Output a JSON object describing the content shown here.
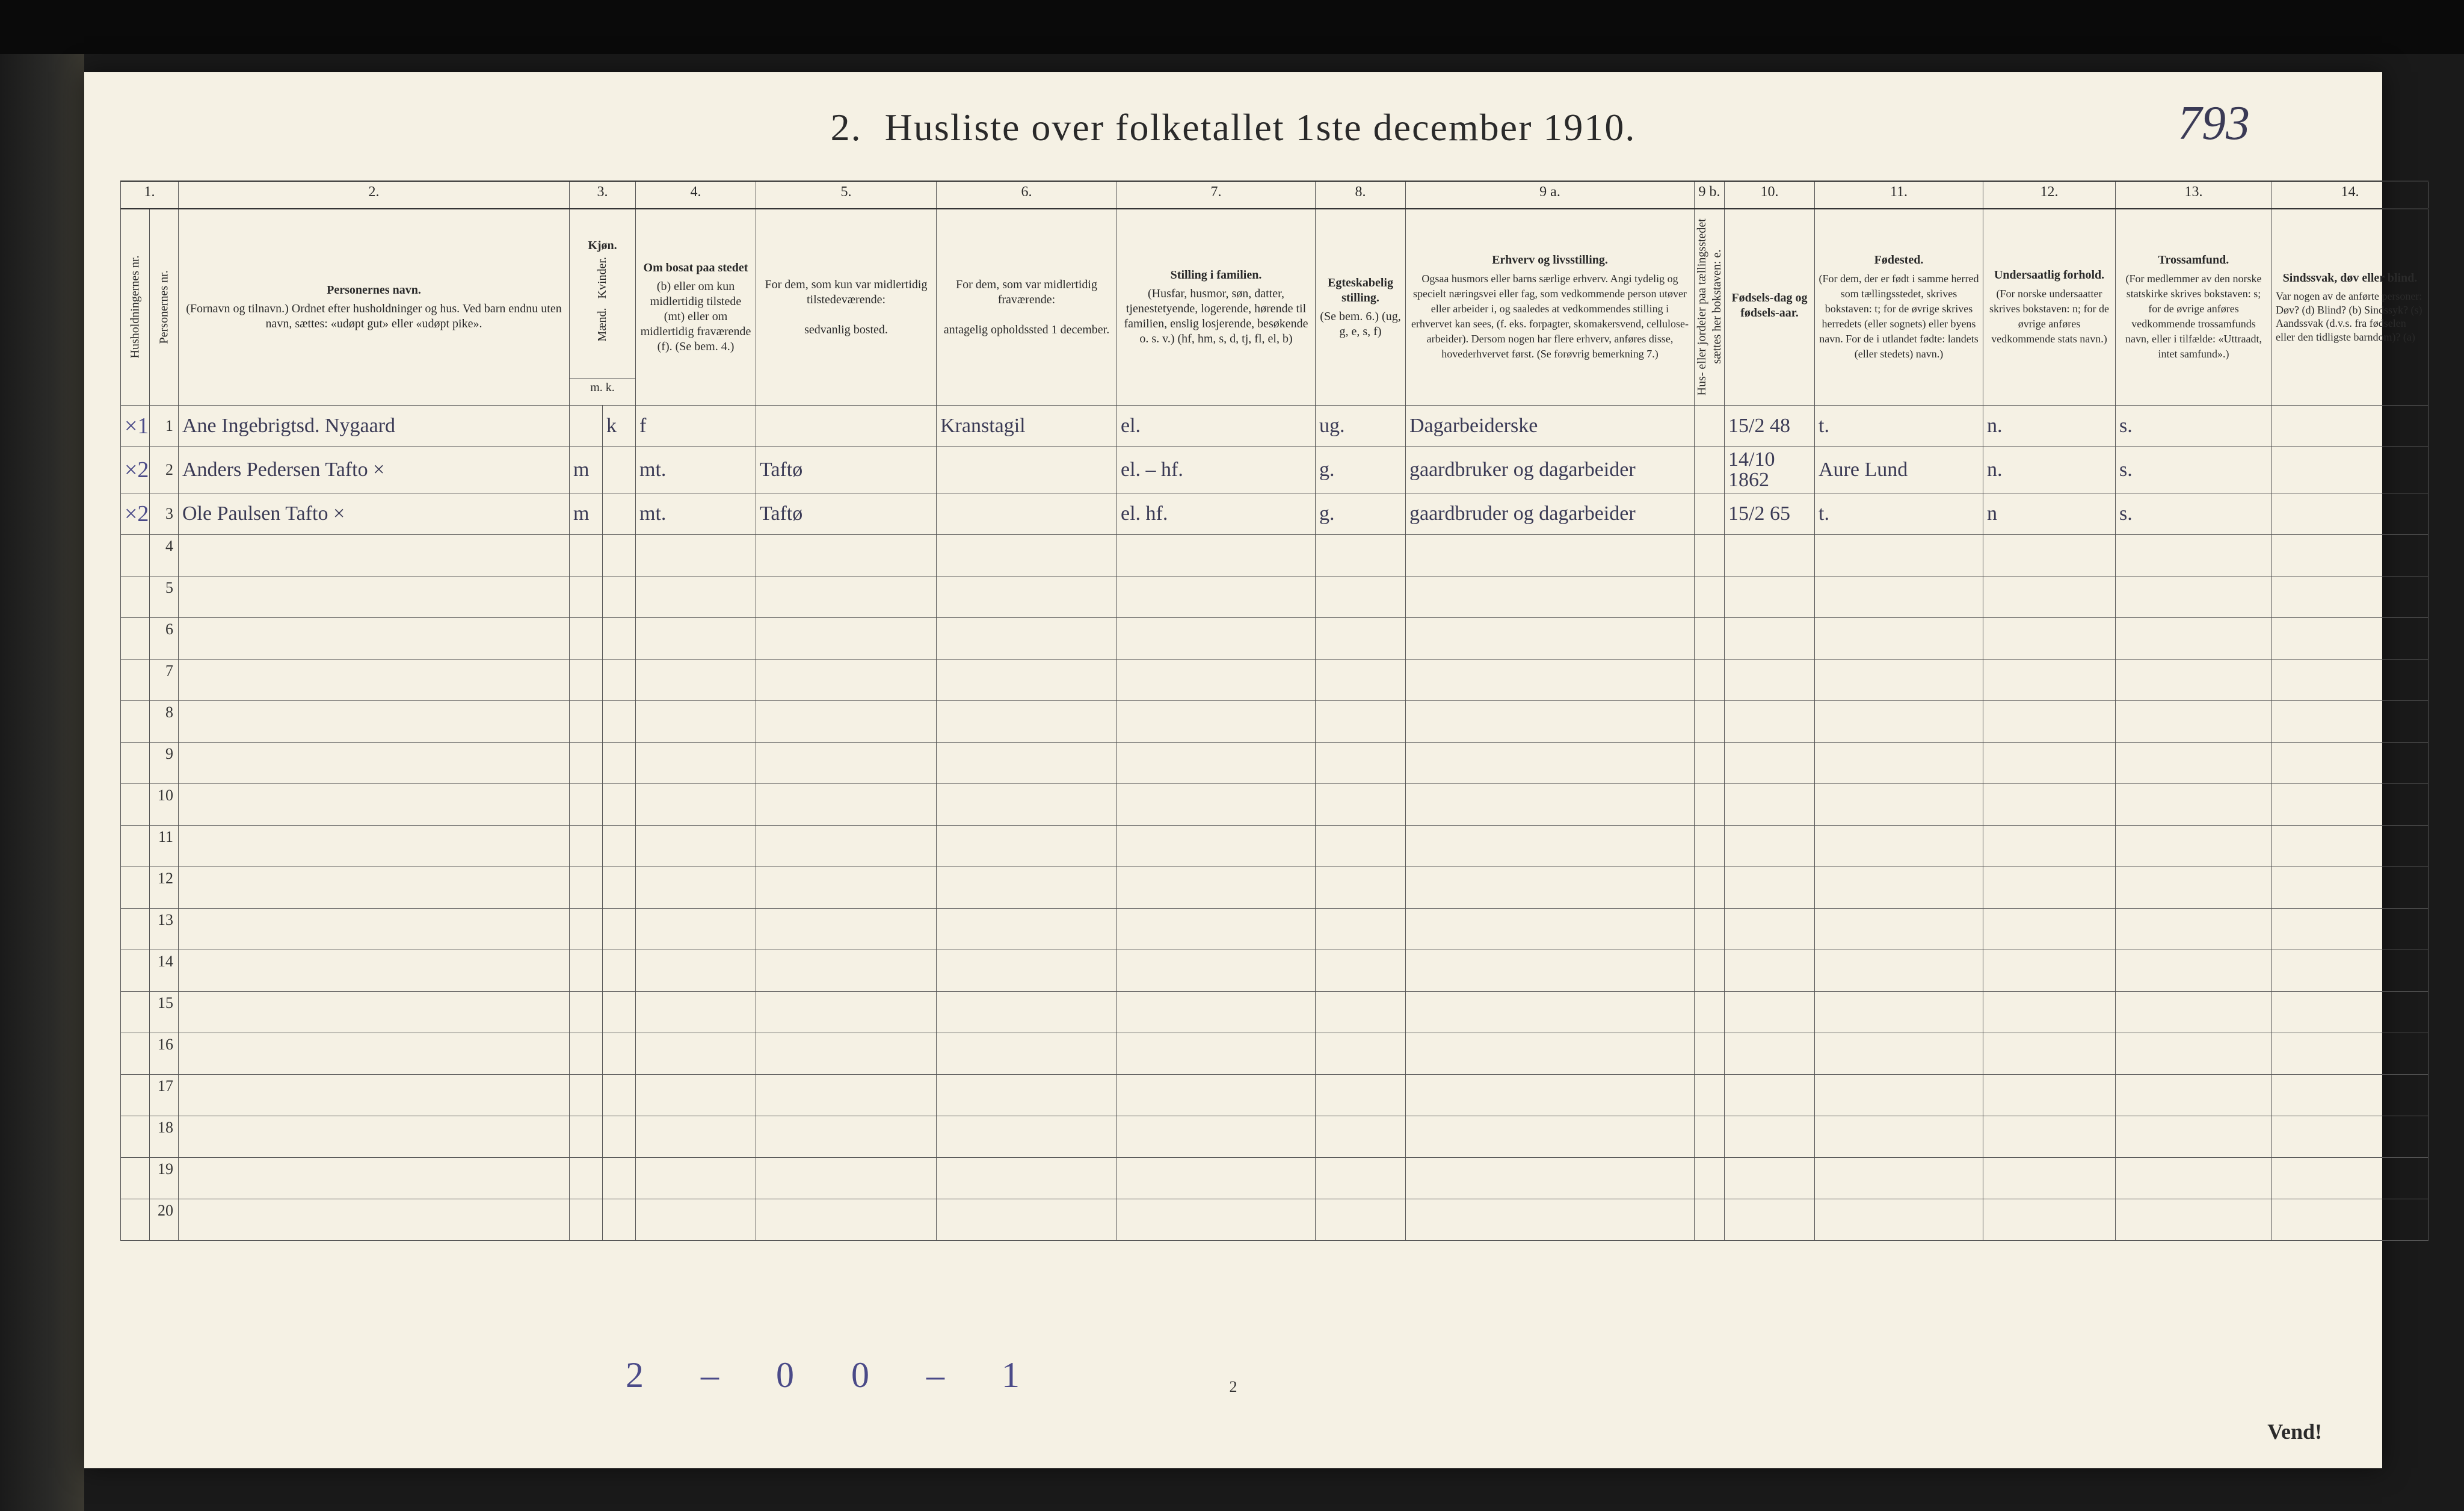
{
  "title_prefix": "2.",
  "title_main": "Husliste over folketallet 1ste december 1910.",
  "pencil_topright": "793",
  "colors": {
    "paper": "#f5f1e4",
    "ink": "#2a2a2a",
    "rule": "#555555",
    "pencil": "#4a4a88",
    "handwriting": "#3a3a55"
  },
  "column_numbers": [
    "1.",
    "2.",
    "3.",
    "4.",
    "5.",
    "6.",
    "7.",
    "8.",
    "9 a.",
    "9 b.",
    "10.",
    "11.",
    "12.",
    "13.",
    "14."
  ],
  "headers": {
    "c1a": "Husholdningernes nr.",
    "c1b": "Personernes nr.",
    "c2": {
      "title": "Personernes navn.",
      "sub": "(Fornavn og tilnavn.)\nOrdnet efter husholdninger og hus.\nVed barn endnu uten navn, sættes: «udøpt gut» eller «udøpt pike»."
    },
    "c3": {
      "title": "Kjøn.",
      "sub_m": "Mænd.",
      "sub_k": "Kvinder.",
      "mk": "m.  k."
    },
    "c4": {
      "title": "Om bosat paa stedet",
      "sub": "(b) eller om kun midlertidig tilstede (mt) eller om midlertidig fraværende (f). (Se bem. 4.)"
    },
    "c5": {
      "title": "For dem, som kun var midlertidig tilstedeværende:",
      "sub": "sedvanlig bosted."
    },
    "c6": {
      "title": "For dem, som var midlertidig fraværende:",
      "sub": "antagelig opholdssted 1 december."
    },
    "c7": {
      "title": "Stilling i familien.",
      "sub": "(Husfar, husmor, søn, datter, tjenestetyende, logerende, hørende til familien, enslig losjerende, besøkende o. s. v.)\n(hf, hm, s, d, tj, fl, el, b)"
    },
    "c8": {
      "title": "Egteskabelig stilling.",
      "sub": "(Se bem. 6.)\n(ug, g, e, s, f)"
    },
    "c9a": {
      "title": "Erhverv og livsstilling.",
      "sub": "Ogsaa husmors eller barns særlige erhverv. Angi tydelig og specielt næringsvei eller fag, som vedkommende person utøver eller arbeider i, og saaledes at vedkommendes stilling i erhvervet kan sees, (f. eks. forpagter, skomakersvend, cellulose-arbeider). Dersom nogen har flere erhverv, anføres disse, hovederhvervet først. (Se forøvrig bemerkning 7.)"
    },
    "c9b": "Hus- eller jordeier paa tællingsstedet sættes her bokstaven: e.",
    "c10": {
      "title": "Fødsels-dag og fødsels-aar."
    },
    "c11": {
      "title": "Fødested.",
      "sub": "(For dem, der er født i samme herred som tællingsstedet, skrives bokstaven: t; for de øvrige skrives herredets (eller sognets) eller byens navn. For de i utlandet fødte: landets (eller stedets) navn.)"
    },
    "c12": {
      "title": "Undersaatlig forhold.",
      "sub": "(For norske undersaatter skrives bokstaven: n; for de øvrige anføres vedkommende stats navn.)"
    },
    "c13": {
      "title": "Trossamfund.",
      "sub": "(For medlemmer av den norske statskirke skrives bokstaven: s; for de øvrige anføres vedkommende trossamfunds navn, eller i tilfælde: «Uttraadt, intet samfund».)"
    },
    "c14": {
      "title": "Sindssvak, døv eller blind.",
      "sub": "Var nogen av de anførte personer:\nDøv?   (d)\nBlind?  (b)\nSindssyk? (s)\nAandssvak (d.v.s. fra fødselen eller den tidligste barndom)? (a)"
    }
  },
  "rows": [
    {
      "margin": "×1.",
      "nr": "1",
      "name": "Ane Ingebrigtsd. Nygaard",
      "kjon_k": "k",
      "bosat": "f",
      "bosted": "",
      "fravaer": "Kranstagil",
      "stilling": "el.",
      "egte": "ug.",
      "erhverv": "Dagarbeiderske",
      "fdag": "15/2 48",
      "fsted": "t.",
      "und": "n.",
      "tros": "s."
    },
    {
      "margin": "×2.",
      "nr": "2",
      "name": "Anders Pedersen Tafto ×",
      "kjon_m": "m",
      "bosat": "mt.",
      "bosted": "Taftø",
      "fravaer": "",
      "stilling": "el. – hf.",
      "egte": "g.",
      "erhverv": "gaardbruker og dagarbeider",
      "fdag": "14/10 1862",
      "fsted": "Aure Lund",
      "und": "n.",
      "tros": "s."
    },
    {
      "margin": "×2",
      "nr": "3",
      "name": "Ole Paulsen Tafto ×",
      "kjon_m": "m",
      "bosat": "mt.",
      "bosted": "Taftø",
      "fravaer": "",
      "stilling": "el.  hf.",
      "egte": "g.",
      "erhverv": "gaardbruder og dagarbeider",
      "fdag": "15/2 65",
      "fsted": "t.",
      "und": "n",
      "tros": "s."
    }
  ],
  "empty_rows": [
    "4",
    "5",
    "6",
    "7",
    "8",
    "9",
    "10",
    "11",
    "12",
    "13",
    "14",
    "15",
    "16",
    "17",
    "18",
    "19",
    "20"
  ],
  "bottom_note": "2 – 0   0 – 1",
  "page_small": "2",
  "vend": "Vend!"
}
